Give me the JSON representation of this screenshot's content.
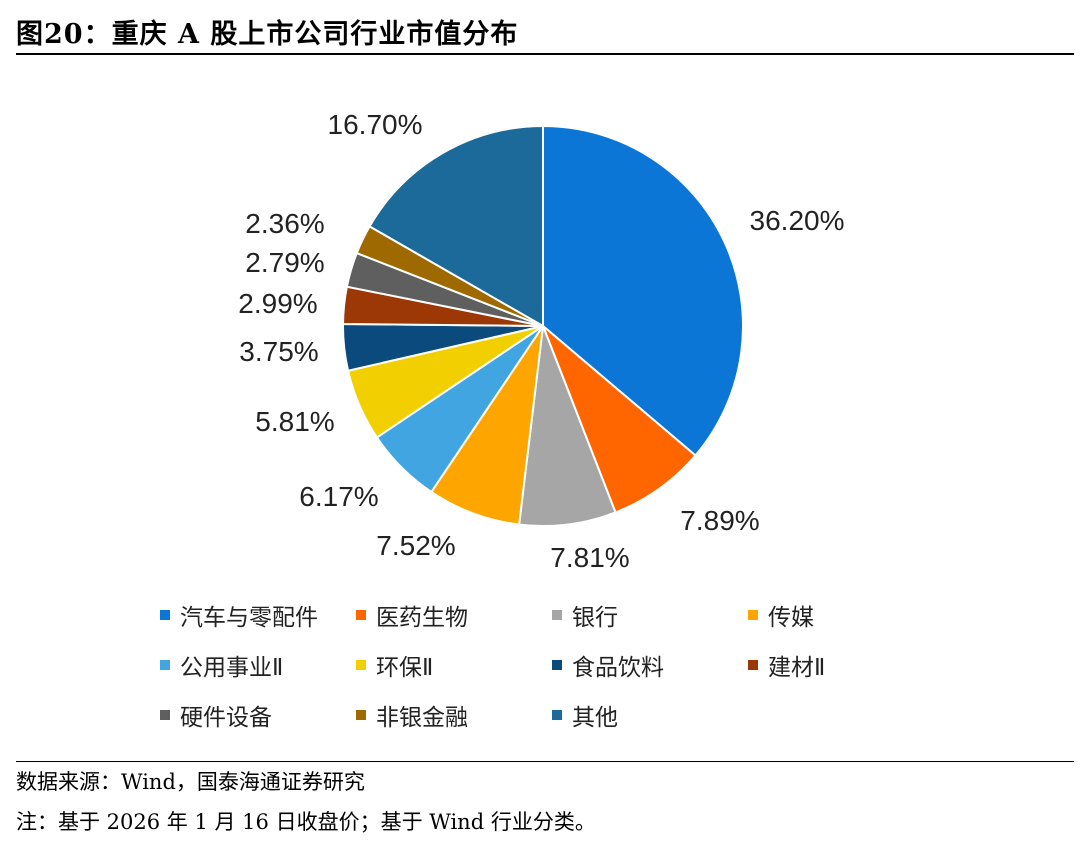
{
  "figure_title": "图20：重庆 A 股上市公司行业市值分布",
  "chart_data": {
    "type": "pie",
    "title": "",
    "start_angle_deg": 0,
    "direction": "clockwise",
    "slices": [
      {
        "name": "汽车与零配件",
        "value": 36.2,
        "label": "36.20%",
        "color": "#0B76D6"
      },
      {
        "name": "医药生物",
        "value": 7.89,
        "label": "7.89%",
        "color": "#FF6600"
      },
      {
        "name": "银行",
        "value": 7.81,
        "label": "7.81%",
        "color": "#A6A6A6"
      },
      {
        "name": "传媒",
        "value": 7.52,
        "label": "7.52%",
        "color": "#FFA500"
      },
      {
        "name": "公用事业Ⅱ",
        "value": 6.17,
        "label": "6.17%",
        "color": "#41A5E1"
      },
      {
        "name": "环保Ⅱ",
        "value": 5.81,
        "label": "5.81%",
        "color": "#F2CF00"
      },
      {
        "name": "食品饮料",
        "value": 3.75,
        "label": "3.75%",
        "color": "#0A4A7D"
      },
      {
        "name": "建材Ⅱ",
        "value": 2.99,
        "label": "2.99%",
        "color": "#9C3806"
      },
      {
        "name": "硬件设备",
        "value": 2.79,
        "label": "2.79%",
        "color": "#5F5F5F"
      },
      {
        "name": "非银金融",
        "value": 2.36,
        "label": "2.36%",
        "color": "#9E6A00"
      },
      {
        "name": "其他",
        "value": 16.7,
        "label": "16.70%",
        "color": "#1C6A99"
      }
    ],
    "legend_position": "bottom"
  },
  "source": "数据来源：Wind，国泰海通证券研究",
  "note": "注：基于 2026 年 1 月 16 日收盘价；基于 Wind 行业分类。"
}
